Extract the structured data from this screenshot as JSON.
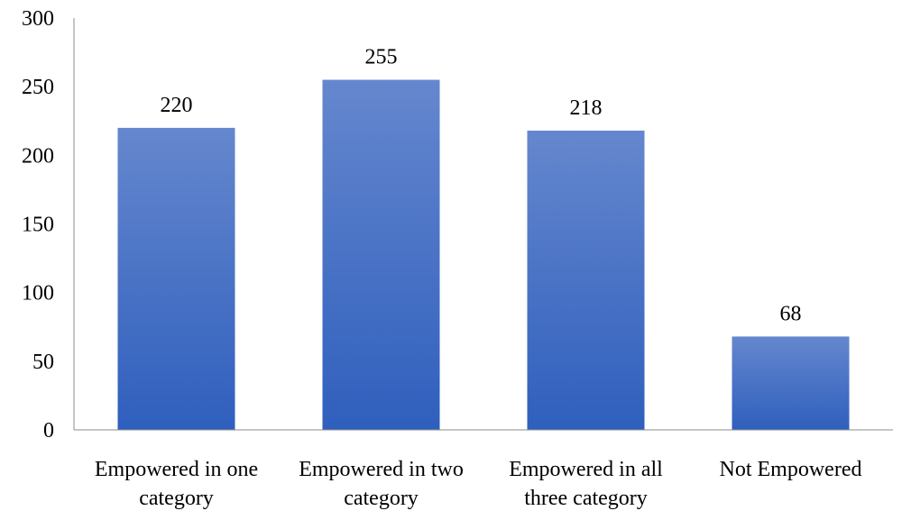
{
  "chart_data": {
    "type": "bar",
    "categories": [
      [
        "Empowered in one",
        "category"
      ],
      [
        "Empowered in two",
        "category"
      ],
      [
        "Empowered in all",
        "three category"
      ],
      [
        "Not Empowered"
      ]
    ],
    "values": [
      220,
      255,
      218,
      68
    ],
    "data_labels": [
      "220",
      "255",
      "218",
      "68"
    ],
    "y_ticks": [
      0,
      50,
      100,
      150,
      200,
      250,
      300
    ],
    "ylim": [
      0,
      300
    ],
    "grid": false,
    "legend": "none",
    "bar_color_top": "#6587ce",
    "bar_color_bottom": "#2f5fbd",
    "axis_color": "#8c8c8c"
  }
}
